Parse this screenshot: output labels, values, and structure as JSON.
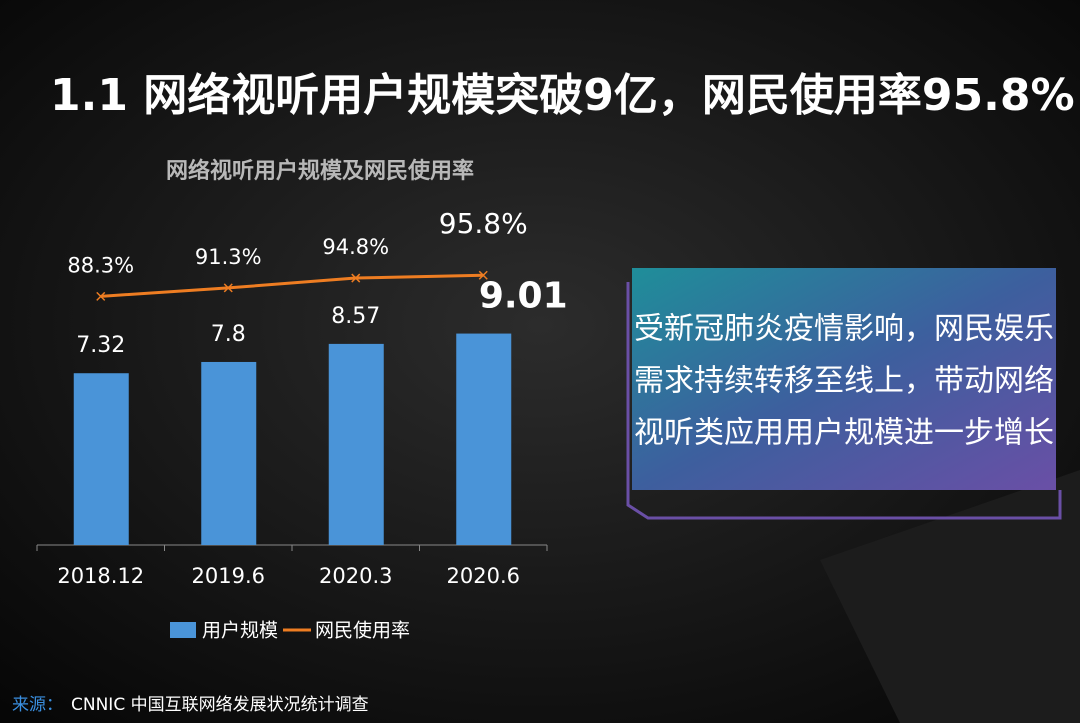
{
  "header": {
    "title": "1.1 网络视听用户规模突破9亿，网民使用率95.8%"
  },
  "chart_data": {
    "type": "bar",
    "title": "网络视听用户规模及网民使用率",
    "categories": [
      "2018.12",
      "2019.6",
      "2020.3",
      "2020.6"
    ],
    "series": [
      {
        "name": "用户规模",
        "type": "bar",
        "color": "#4a94d8",
        "values": [
          7.32,
          7.8,
          8.57,
          9.01
        ]
      },
      {
        "name": "网民使用率",
        "type": "line",
        "axis": "y2",
        "color": "#ee7d22",
        "values": [
          88.3,
          91.3,
          94.8,
          95.8
        ],
        "value_labels": [
          "88.3%",
          "91.3%",
          "94.8%",
          "95.8%"
        ]
      }
    ],
    "ylim": [
      0,
      15
    ],
    "y2lim": [
      0,
      125
    ],
    "legend": "bottom"
  },
  "callout": {
    "lines": [
      "受新冠肺炎疫情影响，网民娱乐",
      "需求持续转移至线上，带动网络",
      "视听类应用用户规模进一步增长"
    ]
  },
  "source": {
    "label": "来源：",
    "text": "CNNIC 中国互联网络发展状况统计调查"
  }
}
